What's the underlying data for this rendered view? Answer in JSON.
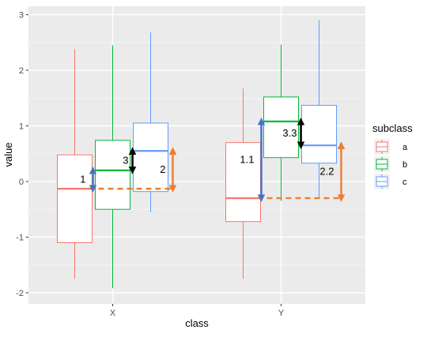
{
  "chart_data": {
    "type": "box",
    "x_label": "class",
    "y_label": "value",
    "x_categories": [
      "X",
      "Y"
    ],
    "y_range": [
      -2.2,
      3.15
    ],
    "y_ticks": [
      "-2",
      "-1",
      "0",
      "1",
      "2",
      "3"
    ],
    "grid": true,
    "legend_position": "right",
    "legend": {
      "title": "subclass",
      "entries": [
        {
          "label": "a",
          "color": "#f8766d"
        },
        {
          "label": "b",
          "color": "#00ba38"
        },
        {
          "label": "c",
          "color": "#619cff"
        }
      ]
    },
    "boxes": [
      {
        "class": "X",
        "subclass": "a",
        "whisker_low": -1.75,
        "q1": -1.1,
        "median": -0.13,
        "q3": 0.48,
        "whisker_high": 2.38
      },
      {
        "class": "X",
        "subclass": "b",
        "whisker_low": -1.92,
        "q1": -0.5,
        "median": 0.2,
        "q3": 0.74,
        "whisker_high": 2.45
      },
      {
        "class": "X",
        "subclass": "c",
        "whisker_low": -0.55,
        "q1": -0.18,
        "median": 0.55,
        "q3": 1.05,
        "whisker_high": 2.68
      },
      {
        "class": "Y",
        "subclass": "a",
        "whisker_low": -1.75,
        "q1": -0.72,
        "median": -0.3,
        "q3": 0.7,
        "whisker_high": 1.67
      },
      {
        "class": "Y",
        "subclass": "b",
        "whisker_low": -0.35,
        "q1": 0.43,
        "median": 1.08,
        "q3": 1.52,
        "whisker_high": 2.46
      },
      {
        "class": "Y",
        "subclass": "c",
        "whisker_low": -0.3,
        "q1": 0.33,
        "median": 0.65,
        "q3": 1.37,
        "whisker_high": 2.9
      }
    ],
    "annotations": [
      {
        "label": "1",
        "class": "X",
        "from": -0.13,
        "to": 0.2,
        "color": "#4472c4"
      },
      {
        "label": "3",
        "class": "X",
        "from": 0.2,
        "to": 0.55,
        "color": "#000000"
      },
      {
        "label": "2",
        "class": "X",
        "from": -0.13,
        "to": 0.55,
        "color": "#ed7d31"
      },
      {
        "label": "1.1",
        "class": "Y",
        "from": -0.3,
        "to": 1.08,
        "color": "#4472c4"
      },
      {
        "label": "3.3",
        "class": "Y",
        "from": 0.65,
        "to": 1.08,
        "color": "#000000"
      },
      {
        "label": "2.2",
        "class": "Y",
        "from": -0.3,
        "to": 0.65,
        "color": "#ed7d31"
      }
    ]
  }
}
